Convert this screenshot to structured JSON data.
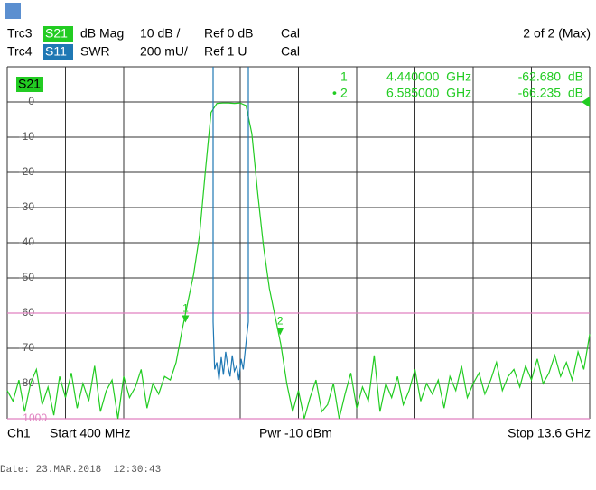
{
  "chart_data": {
    "type": "line",
    "header": {
      "traces": [
        {
          "trace": "Trc3",
          "param": "S21",
          "format": "dB Mag",
          "scale": "10 dB /",
          "ref": "Ref 0 dB",
          "cal": "Cal",
          "color": "#22cc22"
        },
        {
          "trace": "Trc4",
          "param": "S11",
          "format": "SWR",
          "scale": "200 mU/",
          "ref": "Ref 1 U",
          "cal": "Cal",
          "color": "#1f78b4"
        }
      ],
      "page": "2 of 2 (Max)"
    },
    "plot_label": "S21",
    "footer": {
      "channel": "Ch1",
      "start": "Start 400 MHz",
      "power": "Pwr -10 dBm",
      "stop": "Stop 13.6 GHz"
    },
    "date": "Date: 23.MAR.2018  12:30:43",
    "xlim": [
      400,
      13600
    ],
    "x_divisions": 10,
    "ylim": [
      -90,
      10
    ],
    "yticks": [
      0,
      -10,
      -20,
      -30,
      -40,
      -50,
      -60,
      -70,
      -80
    ],
    "y2lim": [
      1,
      3
    ],
    "grid": true,
    "limit_lines": [
      {
        "value": -60,
        "color": "#e080c0"
      },
      {
        "value": -90,
        "color": "#e080c0"
      }
    ],
    "limit_label": "1000",
    "x": [
      400,
      532,
      664,
      796,
      928,
      1060,
      1192,
      1324,
      1456,
      1588,
      1720,
      1852,
      1984,
      2116,
      2248,
      2380,
      2512,
      2644,
      2776,
      2908,
      3040,
      3172,
      3304,
      3436,
      3568,
      3700,
      3832,
      3964,
      4096,
      4228,
      4360,
      4492,
      4624,
      4756,
      4888,
      5020,
      5152,
      5284,
      5416,
      5548,
      5680,
      5812,
      5944,
      6076,
      6208,
      6340,
      6472,
      6604,
      6736,
      6868,
      7000,
      7132,
      7264,
      7396,
      7528,
      7660,
      7792,
      7924,
      8056,
      8188,
      8320,
      8452,
      8584,
      8716,
      8848,
      8980,
      9112,
      9244,
      9376,
      9508,
      9640,
      9772,
      9904,
      10036,
      10168,
      10300,
      10432,
      10564,
      10696,
      10828,
      10960,
      11092,
      11224,
      11356,
      11488,
      11620,
      11752,
      11884,
      12016,
      12148,
      12280,
      12412,
      12544,
      12676,
      12808,
      12940,
      13072,
      13204,
      13336,
      13468,
      13600
    ],
    "series": [
      {
        "name": "S21",
        "color": "#22cc22",
        "values": [
          -82,
          -85,
          -79,
          -88,
          -80,
          -76,
          -86,
          -81,
          -89,
          -78,
          -84,
          -77,
          -87,
          -80,
          -85,
          -75,
          -88,
          -82,
          -79,
          -90,
          -78,
          -84,
          -81,
          -76,
          -87,
          -80,
          -83,
          -78,
          -79,
          -74,
          -65,
          -57,
          -49,
          -38,
          -20,
          -3,
          -0.4,
          -0.3,
          -0.3,
          -0.4,
          -0.3,
          -1,
          -9,
          -26,
          -41,
          -53,
          -61,
          -69,
          -80,
          -88,
          -82,
          -90,
          -84,
          -79,
          -88,
          -86,
          -80,
          -90,
          -83,
          -77,
          -87,
          -81,
          -85,
          -72,
          -88,
          -80,
          -84,
          -78,
          -86,
          -82,
          -76,
          -85,
          -80,
          -83,
          -79,
          -87,
          -78,
          -82,
          -75,
          -84,
          -80,
          -77,
          -83,
          -79,
          -74,
          -82,
          -78,
          -76,
          -81,
          -75,
          -79,
          -73,
          -80,
          -77,
          -72,
          -78,
          -74,
          -79,
          -71,
          -76,
          -66
        ]
      },
      {
        "name": "S11",
        "color": "#1f78b4",
        "axis": "y2",
        "x": [
          5066,
          5066,
          5100,
          5150,
          5200,
          5250,
          5300,
          5350,
          5400,
          5450,
          5500,
          5550,
          5600,
          5650,
          5700,
          5750,
          5820,
          5864,
          5864
        ],
        "values": [
          3,
          1.55,
          1.28,
          1.32,
          1.22,
          1.35,
          1.25,
          1.38,
          1.3,
          1.24,
          1.36,
          1.27,
          1.3,
          1.22,
          1.34,
          1.28,
          1.45,
          1.55,
          3
        ]
      }
    ],
    "markers": [
      {
        "number": "1",
        "x": 4440,
        "value": -62.68,
        "x_label": "4.440000  GHz",
        "value_label": "-62.680  dB"
      },
      {
        "number": "2",
        "active": "•",
        "x": 6585,
        "value": -66.235,
        "x_label": "6.585000  GHz",
        "value_label": "-66.235  dB"
      }
    ]
  }
}
